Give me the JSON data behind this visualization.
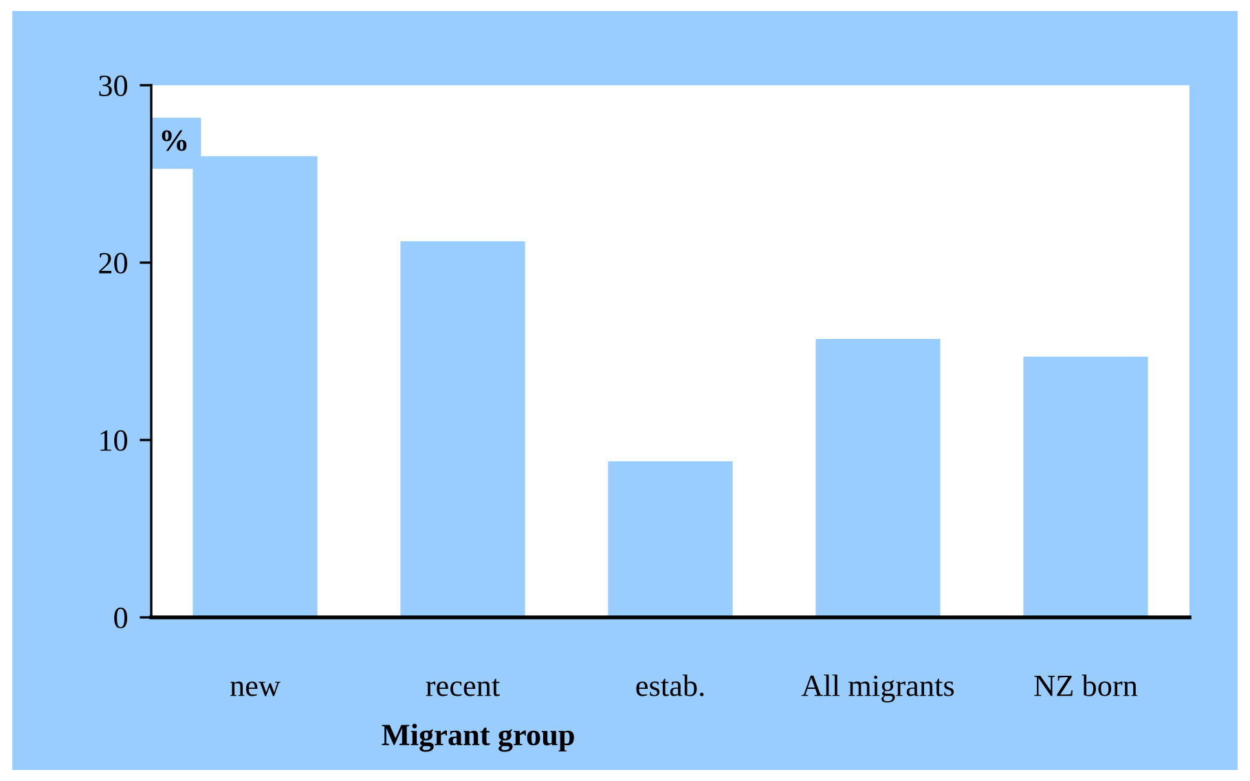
{
  "chart_data": {
    "type": "bar",
    "ylabel": "%",
    "xlabel": "Migrant group",
    "categories": [
      "new",
      "recent",
      "estab.",
      "All migrants",
      "NZ born"
    ],
    "values": [
      26.0,
      21.2,
      8.8,
      15.7,
      14.7
    ],
    "color": "#99ccff",
    "ylim": [
      0,
      30
    ],
    "yticks": [
      0,
      10,
      20,
      30
    ],
    "grid": false,
    "legend": false
  }
}
